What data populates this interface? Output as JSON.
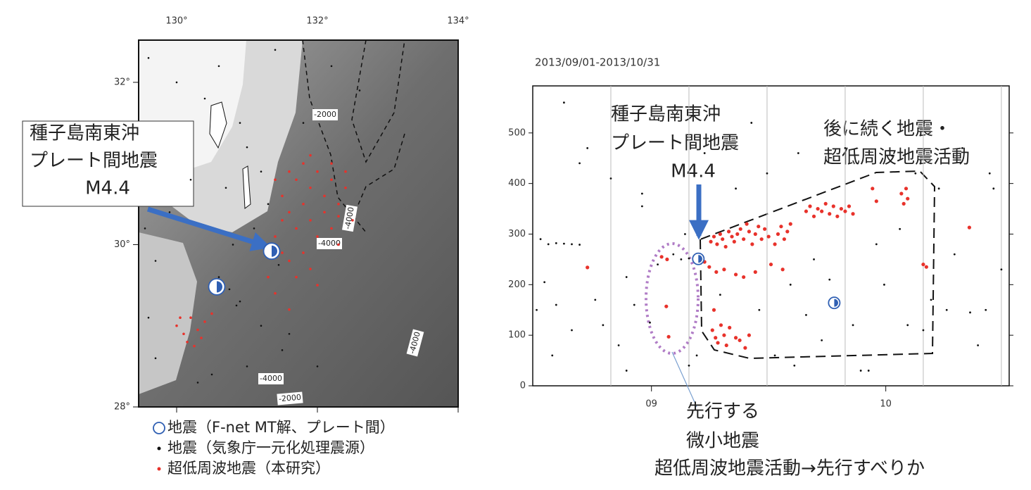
{
  "chart_data": [
    {
      "type": "map",
      "xlim": [
        129.46,
        134
      ],
      "ylim": [
        28,
        32.52
      ],
      "xticks": [
        {
          "value": 130,
          "label": "130°"
        },
        {
          "value": 132,
          "label": "132°"
        },
        {
          "value": 134,
          "label": "134°"
        }
      ],
      "yticks": [
        {
          "value": 28,
          "label": "28°"
        },
        {
          "value": 30,
          "label": "30°"
        },
        {
          "value": 32,
          "label": "32°"
        }
      ],
      "contour_labels": [
        "-2000",
        "-4000",
        "-4000",
        "-4000",
        "-4000",
        "-2000"
      ],
      "annotations": [
        "種子島南東沖",
        "プレート間地震",
        "M4.4"
      ],
      "series": [
        {
          "name": "地震（F-net MT解、プレート間）",
          "color": "#2f5fb3",
          "marker": "beachball",
          "x": [
            131.35,
            130.57
          ],
          "values": [
            29.92,
            29.48
          ]
        },
        {
          "name": "地震（気象庁一元化処理震源）",
          "color": "#111111",
          "marker": "dot",
          "x": [
            129.6,
            130.0,
            130.4,
            130.6,
            130.9,
            131.0,
            131.2,
            131.3,
            131.1,
            130.8,
            130.6,
            130.9,
            131.2,
            131.5,
            131.0,
            130.3,
            129.7,
            129.6,
            129.7,
            129.9,
            130.2,
            131.8,
            132.2,
            132.6,
            131.4,
            130.7,
            131.6,
            132.0,
            130.5,
            129.55,
            131.35,
            131.45,
            131.3,
            130.75,
            130.85
          ],
          "values": [
            32.3,
            32.0,
            31.8,
            32.2,
            31.5,
            31.2,
            30.9,
            30.5,
            30.2,
            30.0,
            29.6,
            29.3,
            29.0,
            28.7,
            28.5,
            28.3,
            28.6,
            29.1,
            29.8,
            30.4,
            30.8,
            31.5,
            32.2,
            31.9,
            32.4,
            30.7,
            28.9,
            28.5,
            28.4,
            30.2,
            29.85,
            29.75,
            29.95,
            29.45,
            29.25
          ]
        },
        {
          "name": "超低周波地震（本研究）",
          "color": "#e8322b",
          "marker": "dot",
          "x": [
            131.6,
            131.7,
            131.8,
            131.9,
            132.0,
            132.1,
            132.2,
            132.3,
            132.4,
            131.5,
            131.6,
            131.7,
            131.8,
            131.9,
            132.0,
            132.1,
            132.2,
            132.3,
            131.4,
            131.5,
            131.6,
            131.7,
            131.8,
            131.9,
            132.0,
            131.4,
            131.6,
            131.3,
            132.5,
            132.4,
            131.9,
            132.2,
            131.5,
            131.4,
            132.3,
            130.0,
            130.1,
            130.2,
            130.3,
            130.4,
            130.15,
            130.35,
            130.5,
            130.05,
            130.25
          ],
          "values": [
            30.9,
            30.8,
            31.0,
            30.7,
            30.9,
            30.6,
            30.8,
            30.5,
            30.7,
            30.6,
            30.4,
            30.2,
            30.5,
            30.3,
            30.1,
            30.4,
            30.2,
            30.0,
            30.1,
            29.9,
            29.8,
            29.6,
            29.9,
            29.7,
            29.5,
            29.4,
            29.2,
            29.6,
            30.3,
            30.9,
            31.1,
            31.0,
            30.3,
            30.8,
            30.35,
            29.0,
            28.9,
            29.1,
            28.95,
            29.05,
            28.8,
            28.85,
            29.15,
            29.1,
            28.75
          ]
        }
      ]
    },
    {
      "type": "scatter",
      "title": "2013/09/01-2013/10/31",
      "xlim": [
        0,
        61
      ],
      "ylim": [
        0,
        593
      ],
      "xticks": [
        {
          "value": 15.2,
          "label": "09"
        },
        {
          "value": 45.2,
          "label": "10"
        }
      ],
      "xgrid": [
        10,
        20,
        30,
        40,
        50,
        60
      ],
      "yticks": [
        0,
        100,
        200,
        300,
        400,
        500
      ],
      "annotations": [
        "種子島南東沖",
        "プレート間地震",
        "M4.4",
        "後に続く地震・",
        "超低周波地震活動",
        "先行する",
        "微小地震",
        "超低周波地震活動→先行すべりか"
      ],
      "series": [
        {
          "color": "#111111",
          "marker": "dot",
          "x": [
            1,
            2,
            3,
            4,
            5,
            6,
            1.5,
            3,
            5,
            7,
            8,
            9,
            10,
            11,
            12,
            13,
            14,
            15,
            14,
            16,
            18,
            19,
            20,
            19.5,
            21,
            22,
            24,
            26,
            28,
            29,
            30,
            31,
            33,
            34,
            35,
            36,
            37,
            38,
            39,
            40,
            41,
            42,
            43,
            44,
            45,
            46,
            47,
            48,
            49,
            50,
            51,
            52,
            53,
            54,
            55,
            56,
            57,
            58,
            59,
            60,
            58.5,
            0.5,
            2.5,
            4,
            6,
            12,
            20,
            33.5,
            45.5
          ],
          "values": [
            290,
            280,
            282,
            281,
            280,
            279,
            205,
            160,
            110,
            470,
            170,
            120,
            410,
            80,
            215,
            160,
            355,
            125,
            380,
            240,
            260,
            250,
            252,
            300,
            60,
            460,
            180,
            390,
            520,
            150,
            420,
            60,
            200,
            460,
            140,
            250,
            90,
            210,
            170,
            470,
            120,
            30,
            30,
            280,
            200,
            455,
            310,
            120,
            420,
            110,
            170,
            390,
            150,
            260,
            470,
            145,
            80,
            150,
            390,
            230,
            420,
            150,
            60,
            560,
            440,
            30,
            40,
            40,
            520
          ]
        },
        {
          "color": "#e8322b",
          "marker": "dot",
          "x": [
            22.8,
            23.2,
            23.6,
            24.0,
            24.3,
            24.7,
            25.1,
            25.5,
            25.8,
            26.2,
            26.6,
            27.0,
            27.4,
            27.7,
            28.1,
            28.5,
            28.9,
            29.3,
            29.7,
            30.2,
            31.0,
            31.4,
            31.8,
            32.2,
            32.6,
            33.0,
            23.0,
            23.4,
            23.7,
            24.1,
            24.5,
            24.8,
            25.2,
            26.0,
            26.5,
            27.2,
            27.7,
            23.2,
            22.0,
            22.6,
            23.5,
            24.5,
            26.0,
            27.0,
            28.5,
            30.5,
            32.0,
            35.0,
            35.5,
            36.0,
            36.5,
            37.0,
            37.5,
            38.0,
            38.5,
            39.0,
            39.5,
            40.0,
            40.5,
            41.0,
            43.5,
            44.0,
            47.2,
            47.5,
            47.8,
            48.0,
            50.0,
            50.4,
            55.9,
            7.0,
            17.1,
            17.4,
            17.2,
            16.5
          ],
          "values": [
            285,
            295,
            280,
            300,
            290,
            275,
            305,
            295,
            285,
            300,
            310,
            290,
            320,
            305,
            280,
            300,
            315,
            290,
            310,
            295,
            280,
            300,
            315,
            290,
            305,
            320,
            110,
            95,
            85,
            120,
            100,
            80,
            115,
            95,
            90,
            75,
            100,
            150,
            245,
            235,
            225,
            230,
            220,
            215,
            225,
            240,
            230,
            345,
            355,
            335,
            350,
            345,
            360,
            340,
            355,
            335,
            350,
            345,
            355,
            340,
            390,
            365,
            380,
            360,
            390,
            370,
            240,
            235,
            313,
            234,
            157,
            97,
            250,
            255
          ]
        },
        {
          "color": "#2f5fb3",
          "marker": "beachball",
          "x": [
            21.2,
            38.6
          ],
          "values": [
            251,
            164
          ]
        }
      ]
    }
  ]
}
